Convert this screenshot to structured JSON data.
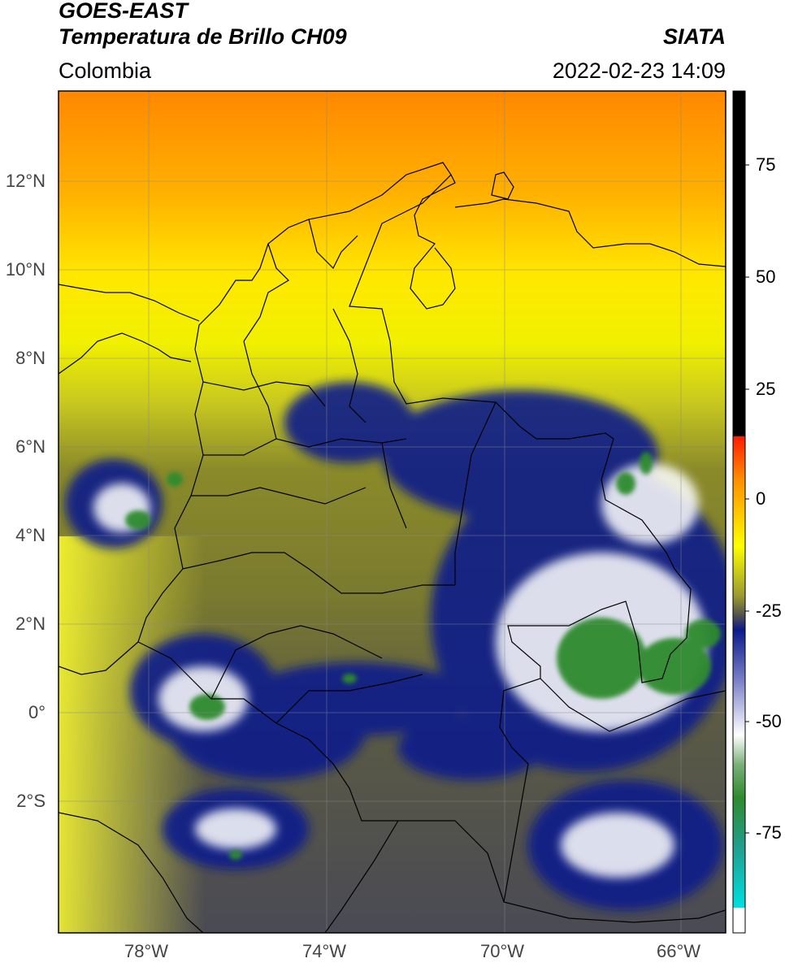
{
  "header": {
    "satellite": "GOES-EAST",
    "product": "Temperatura de Brillo CH09",
    "region": "Colombia",
    "source": "SIATA",
    "datetime": "2022-02-23 14:09"
  },
  "map": {
    "lon_range": [
      -80,
      -65
    ],
    "lat_range": [
      -5,
      14
    ],
    "lon_ticks": [
      "78°W",
      "74°W",
      "70°W",
      "66°W"
    ],
    "lat_ticks": [
      "12°N",
      "10°N",
      "8°N",
      "6°N",
      "4°N",
      "2°N",
      "0°",
      "2°S"
    ],
    "gridlines": true
  },
  "colorbar": {
    "range": [
      -100,
      90
    ],
    "ticks": [
      "75",
      "50",
      "25",
      "0",
      "-25",
      "-50",
      "-75"
    ],
    "colors": {
      "black": "#000000",
      "red": "#ff1a00",
      "orange": "#ff8c00",
      "yellow": "#ffff00",
      "olive": "#8a8a2a",
      "gray": "#4a4a55",
      "navy": "#0a1a8a",
      "white": "#ffffff",
      "green": "#2e8b2e",
      "cyan": "#00e0e0"
    }
  }
}
